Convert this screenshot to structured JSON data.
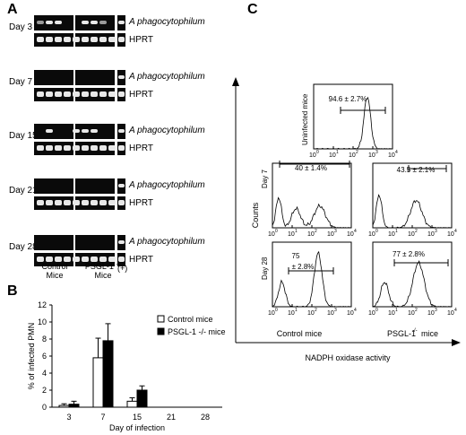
{
  "panels": {
    "A": "A",
    "B": "B",
    "C": "C"
  },
  "panel_a": {
    "days": [
      "Day 3",
      "Day 7",
      "Day 15",
      "Day 21",
      "Day 28"
    ],
    "target_gene": "A phagocytophilum",
    "control_gene": "HPRT",
    "groups": {
      "control_line1": "Control",
      "control_line2": "Mice",
      "psgl_prefix": "PSGL-1",
      "psgl_sup": "-/-",
      "psgl_line2": "Mice",
      "positive": "(+)"
    }
  },
  "panel_b": {
    "chart_data": {
      "type": "bar",
      "categories": [
        "3",
        "7",
        "15",
        "21",
        "28"
      ],
      "series": [
        {
          "name": "Control mice",
          "values": [
            0.2,
            5.8,
            0.7,
            0,
            0
          ],
          "errors": [
            0.2,
            2.3,
            0.4,
            0,
            0
          ],
          "color": "#ffffff"
        },
        {
          "name": "PSGL-1 -/- mice",
          "values": [
            0.35,
            7.8,
            2.0,
            0,
            0
          ],
          "errors": [
            0.35,
            2.0,
            0.5,
            0,
            0
          ],
          "color": "#000000"
        }
      ],
      "xlabel": "Day of infection",
      "ylabel": "% of infected PMN",
      "ylim": [
        0,
        12
      ],
      "yticks": [
        "0",
        "2",
        "4",
        "6",
        "8",
        "10",
        "12"
      ],
      "legend": [
        "Control mice",
        "PSGL-1 -/- mice"
      ],
      "legend_position": "top-right"
    }
  },
  "panel_c": {
    "y_axis_label": "Counts",
    "x_axis_label": "NADPH oxidase activity",
    "col_control": "Control  mice",
    "col_psgl": "PSGL-1",
    "col_psgl_sup": "-/-",
    "col_psgl_suffix": "mice",
    "ticks": [
      "10",
      "10",
      "10",
      "10",
      "10"
    ],
    "tick_exps": [
      "0",
      "1",
      "2",
      "3",
      "4"
    ],
    "histograms": {
      "uninfected": {
        "row": "Uninfected mice",
        "value": "94.6 ± 2.7%"
      },
      "day7_control": {
        "row": "Day 7",
        "value": "40 ± 1.4%"
      },
      "day7_psgl": {
        "value": "43.5 ± 2.1%"
      },
      "day28_control": {
        "row": "Day 28",
        "value_line1": "75",
        "value_line2": "± 2.8%"
      },
      "day28_psgl": {
        "value": "77 ± 2.8%"
      }
    }
  }
}
